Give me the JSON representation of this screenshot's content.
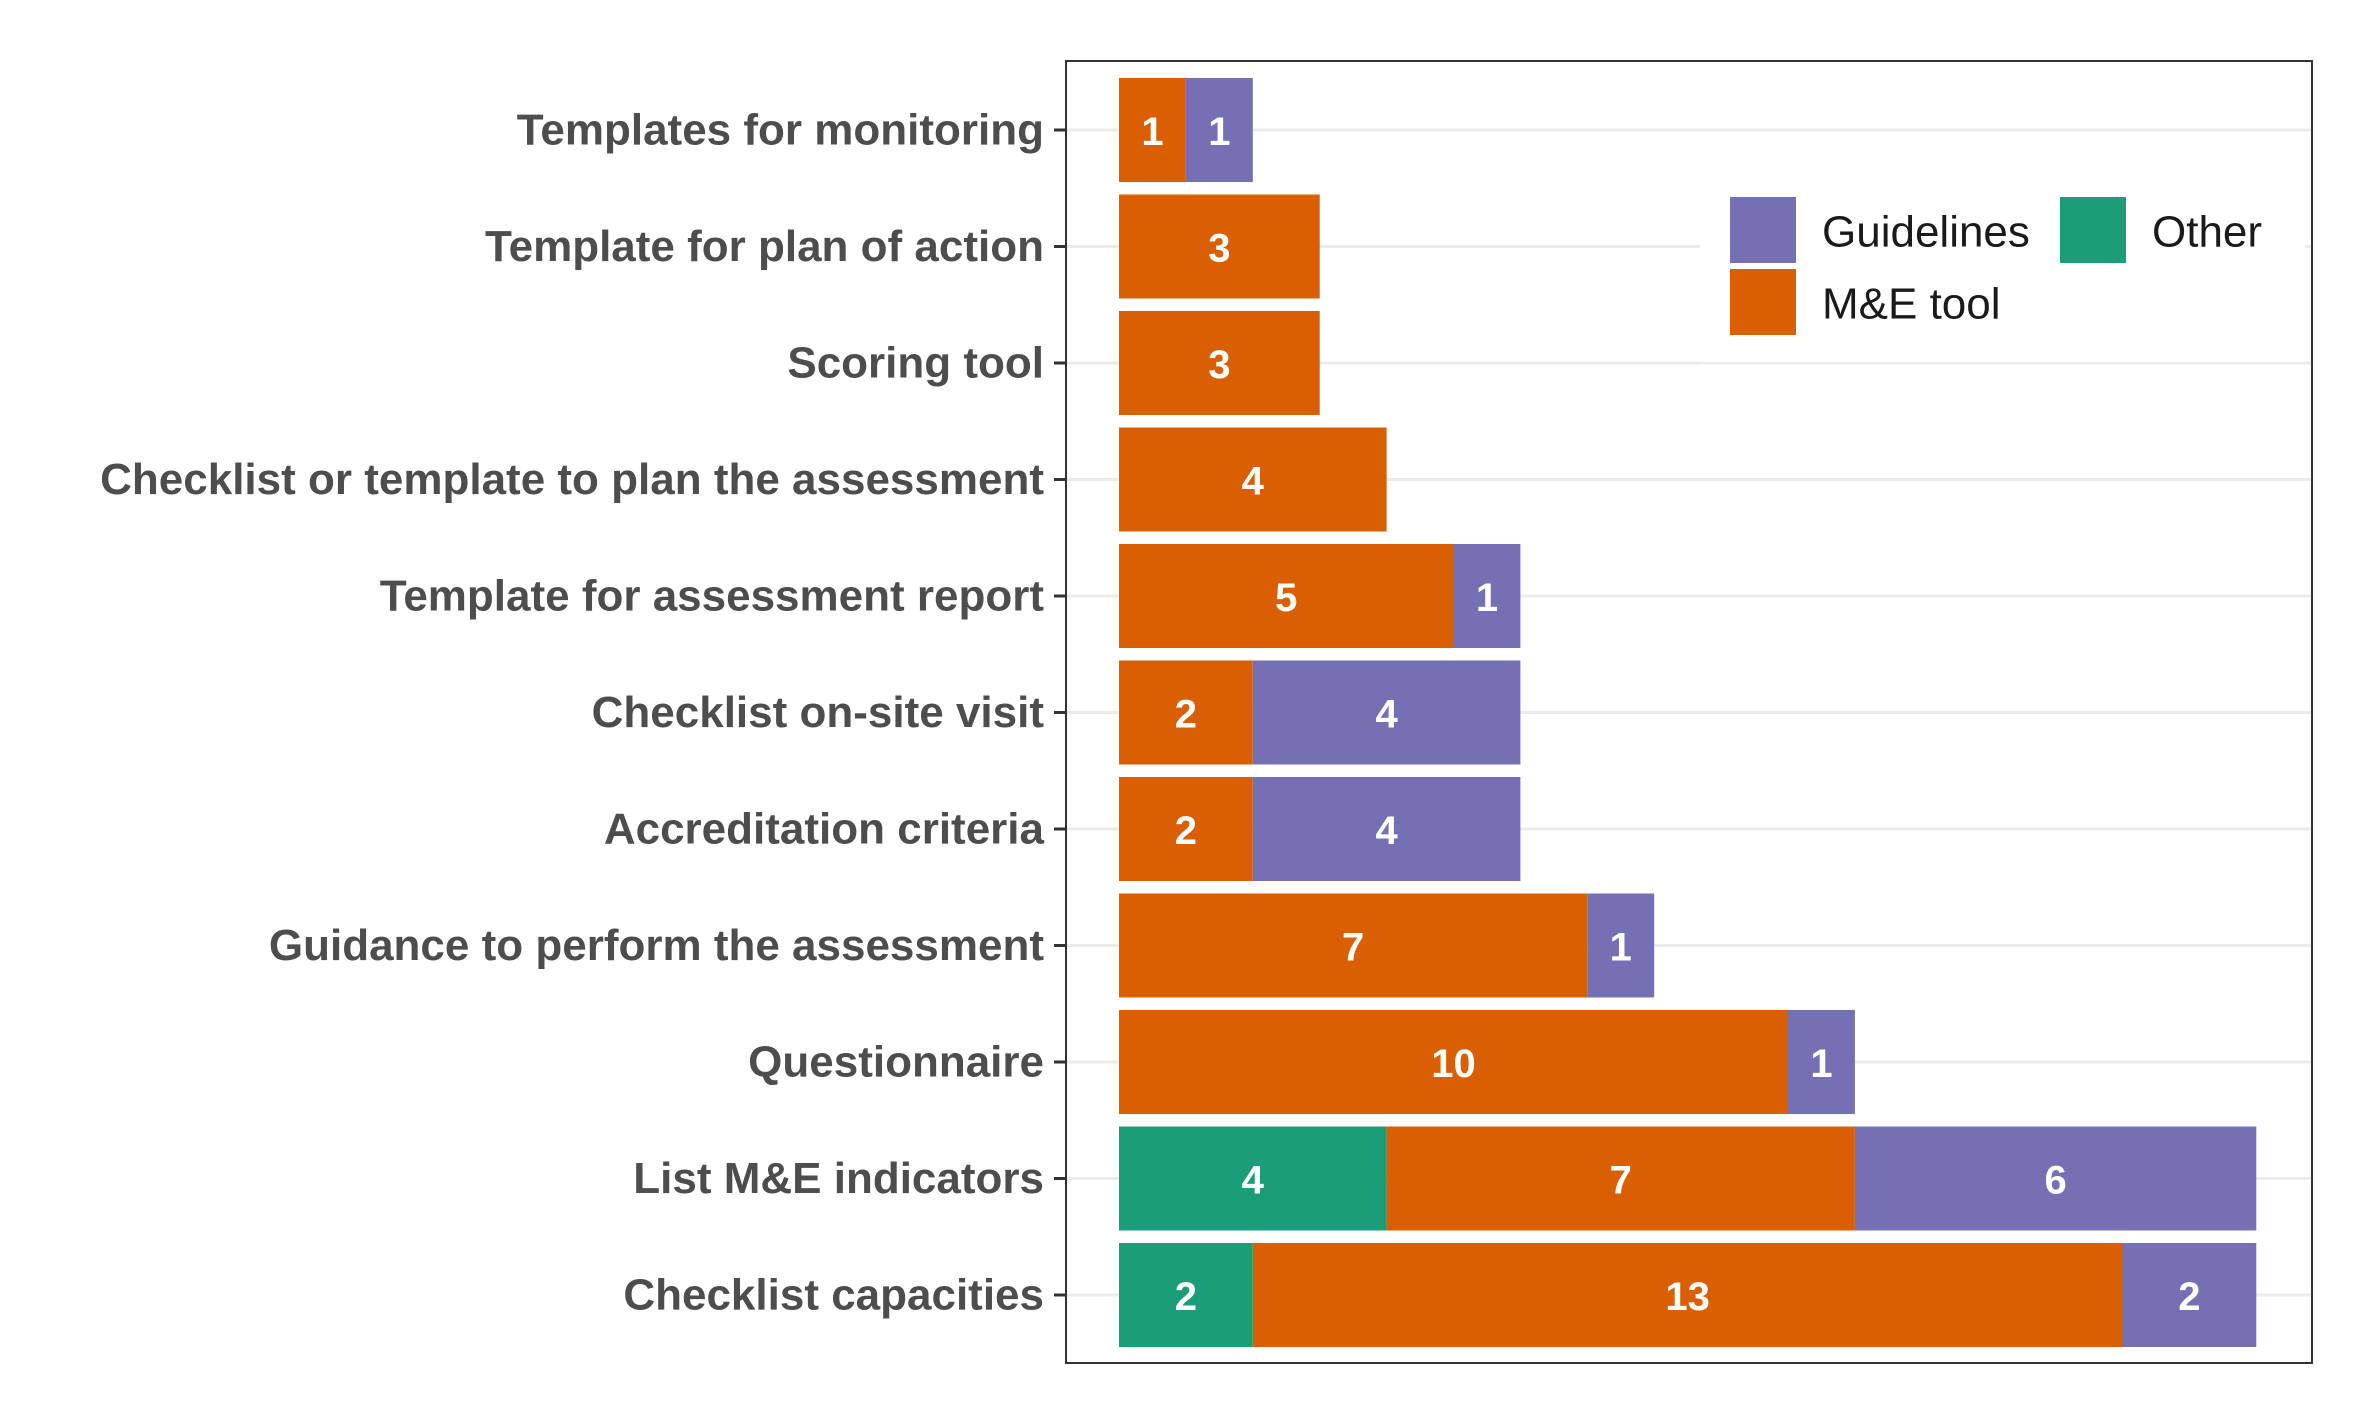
{
  "chart_data": {
    "type": "bar",
    "orientation": "horizontal",
    "stacked": true,
    "categories": [
      "Templates for monitoring",
      "Template for plan of action",
      "Scoring tool",
      "Checklist or template to plan the assessment",
      "Template for assessment report",
      "Checklist on-site visit",
      "Accreditation criteria",
      "Guidance to perform the assessment",
      "Questionnaire",
      "List M&E indicators",
      "Checklist capacities"
    ],
    "series": [
      {
        "name": "Other",
        "color": "#1b9e77",
        "values": [
          0,
          0,
          0,
          0,
          0,
          0,
          0,
          0,
          0,
          4,
          2
        ]
      },
      {
        "name": "M&E tool",
        "color": "#d95f02",
        "values": [
          1,
          3,
          3,
          4,
          5,
          2,
          2,
          7,
          10,
          7,
          13
        ]
      },
      {
        "name": "Guidelines",
        "color": "#7570b3",
        "values": [
          1,
          0,
          0,
          0,
          1,
          4,
          4,
          1,
          1,
          6,
          2
        ]
      }
    ],
    "legend_order": [
      "Guidelines",
      "Other",
      "M&E tool"
    ],
    "legend_position": "top-right",
    "xlim": [
      0,
      17.6
    ],
    "grid": true,
    "title": "",
    "xlabel": "",
    "ylabel": ""
  }
}
